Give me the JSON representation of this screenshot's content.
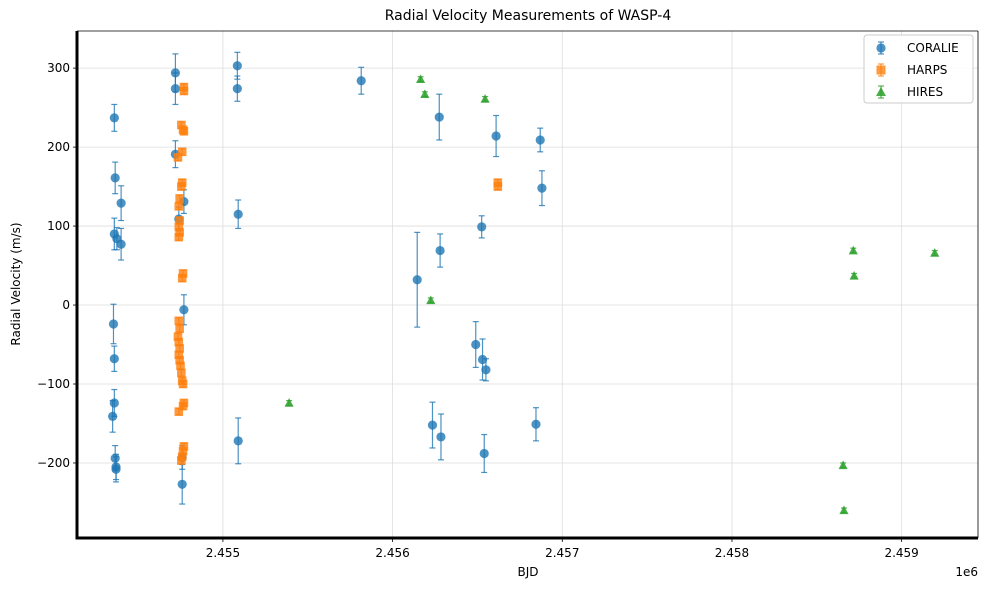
{
  "chart_data": {
    "type": "scatter",
    "title": "Radial Velocity Measurements of WASP-4",
    "xlabel": "BJD",
    "ylabel": "Radial Velocity (m/s)",
    "x_offset_label": "1e6",
    "xlim": [
      2454140,
      2459450
    ],
    "ylim": [
      -295,
      347
    ],
    "xticks": [
      2455000,
      2456000,
      2457000,
      2458000,
      2459000
    ],
    "xtick_labels": [
      "2.455",
      "2.456",
      "2.457",
      "2.458",
      "2.459"
    ],
    "yticks": [
      -200,
      -100,
      0,
      100,
      200,
      300
    ],
    "ytick_labels": [
      "−200",
      "−100",
      "0",
      "100",
      "200",
      "300"
    ],
    "grid": true,
    "legend_position": "top-right",
    "series": [
      {
        "name": "CORALIE",
        "marker": "circle",
        "color": "#1f77b4",
        "points": [
          {
            "x": 2454360,
            "y": 237,
            "err": 17
          },
          {
            "x": 2454365,
            "y": 161,
            "err": 20
          },
          {
            "x": 2454400,
            "y": 129,
            "err": 22
          },
          {
            "x": 2454360,
            "y": 90,
            "err": 20
          },
          {
            "x": 2454375,
            "y": 84,
            "err": 14
          },
          {
            "x": 2454400,
            "y": 77,
            "err": 20
          },
          {
            "x": 2454355,
            "y": -24,
            "err": 25
          },
          {
            "x": 2454360,
            "y": -68,
            "err": 16
          },
          {
            "x": 2454360,
            "y": -124,
            "err": 17
          },
          {
            "x": 2454350,
            "y": -141,
            "err": 20
          },
          {
            "x": 2454365,
            "y": -194,
            "err": 16
          },
          {
            "x": 2454370,
            "y": -205,
            "err": 16
          },
          {
            "x": 2454370,
            "y": -208,
            "err": 16
          },
          {
            "x": 2454720,
            "y": 294,
            "err": 24
          },
          {
            "x": 2454720,
            "y": 274,
            "err": 20
          },
          {
            "x": 2454720,
            "y": 191,
            "err": 17
          },
          {
            "x": 2454740,
            "y": 109,
            "err": 15
          },
          {
            "x": 2454770,
            "y": 131,
            "err": 15
          },
          {
            "x": 2454770,
            "y": -6,
            "err": 19
          },
          {
            "x": 2454760,
            "y": -193,
            "err": 15
          },
          {
            "x": 2454760,
            "y": -227,
            "err": 25
          },
          {
            "x": 2455085,
            "y": 303,
            "err": 17
          },
          {
            "x": 2455085,
            "y": 274,
            "err": 16
          },
          {
            "x": 2455090,
            "y": 115,
            "err": 18
          },
          {
            "x": 2455090,
            "y": -172,
            "err": 29
          },
          {
            "x": 2455815,
            "y": 284,
            "err": 17
          },
          {
            "x": 2456145,
            "y": 32,
            "err": 60
          },
          {
            "x": 2456235,
            "y": -152,
            "err": 29
          },
          {
            "x": 2456275,
            "y": 238,
            "err": 29
          },
          {
            "x": 2456280,
            "y": 69,
            "err": 21
          },
          {
            "x": 2456285,
            "y": -167,
            "err": 29
          },
          {
            "x": 2456490,
            "y": -50,
            "err": 29
          },
          {
            "x": 2456525,
            "y": 99,
            "err": 14
          },
          {
            "x": 2456530,
            "y": -69,
            "err": 26
          },
          {
            "x": 2456540,
            "y": -188,
            "err": 24
          },
          {
            "x": 2456550,
            "y": -82,
            "err": 14
          },
          {
            "x": 2456610,
            "y": 214,
            "err": 26
          },
          {
            "x": 2456845,
            "y": -151,
            "err": 21
          },
          {
            "x": 2456870,
            "y": 209,
            "err": 15
          },
          {
            "x": 2456880,
            "y": 148,
            "err": 22
          }
        ]
      },
      {
        "name": "HARPS",
        "marker": "square",
        "color": "#ff7f0e",
        "points": [
          {
            "x": 2454770,
            "y": 276,
            "err": 4
          },
          {
            "x": 2454770,
            "y": 271,
            "err": 4
          },
          {
            "x": 2454755,
            "y": 228,
            "err": 4
          },
          {
            "x": 2454765,
            "y": 222,
            "err": 4
          },
          {
            "x": 2454770,
            "y": 220,
            "err": 4
          },
          {
            "x": 2454760,
            "y": 194,
            "err": 4
          },
          {
            "x": 2454735,
            "y": 187,
            "err": 4
          },
          {
            "x": 2454760,
            "y": 155,
            "err": 4
          },
          {
            "x": 2454755,
            "y": 150,
            "err": 4
          },
          {
            "x": 2454745,
            "y": 135,
            "err": 4
          },
          {
            "x": 2454740,
            "y": 125,
            "err": 4
          },
          {
            "x": 2454745,
            "y": 107,
            "err": 4
          },
          {
            "x": 2454740,
            "y": 99,
            "err": 4
          },
          {
            "x": 2454745,
            "y": 92,
            "err": 4
          },
          {
            "x": 2454740,
            "y": 86,
            "err": 4
          },
          {
            "x": 2454765,
            "y": 40,
            "err": 4
          },
          {
            "x": 2454760,
            "y": 34,
            "err": 4
          },
          {
            "x": 2454740,
            "y": -20,
            "err": 4
          },
          {
            "x": 2454745,
            "y": -30,
            "err": 4
          },
          {
            "x": 2454735,
            "y": -40,
            "err": 4
          },
          {
            "x": 2454740,
            "y": -47,
            "err": 4
          },
          {
            "x": 2454745,
            "y": -55,
            "err": 4
          },
          {
            "x": 2454740,
            "y": -63,
            "err": 4
          },
          {
            "x": 2454745,
            "y": -70,
            "err": 4
          },
          {
            "x": 2454750,
            "y": -77,
            "err": 4
          },
          {
            "x": 2454755,
            "y": -86,
            "err": 4
          },
          {
            "x": 2454760,
            "y": -96,
            "err": 4
          },
          {
            "x": 2454765,
            "y": -100,
            "err": 4
          },
          {
            "x": 2454770,
            "y": -124,
            "err": 4
          },
          {
            "x": 2454765,
            "y": -128,
            "err": 4
          },
          {
            "x": 2454740,
            "y": -135,
            "err": 4
          },
          {
            "x": 2454770,
            "y": -179,
            "err": 4
          },
          {
            "x": 2454765,
            "y": -185,
            "err": 4
          },
          {
            "x": 2454760,
            "y": -192,
            "err": 4
          },
          {
            "x": 2454755,
            "y": -197,
            "err": 4
          },
          {
            "x": 2456620,
            "y": 155,
            "err": 4
          },
          {
            "x": 2456620,
            "y": 150,
            "err": 4
          }
        ]
      },
      {
        "name": "HIRES",
        "marker": "triangle",
        "color": "#2ca02c",
        "points": [
          {
            "x": 2455390,
            "y": -124,
            "err": 3
          },
          {
            "x": 2456165,
            "y": 286,
            "err": 3
          },
          {
            "x": 2456190,
            "y": 267,
            "err": 3
          },
          {
            "x": 2456225,
            "y": 6,
            "err": 3
          },
          {
            "x": 2456545,
            "y": 261,
            "err": 3
          },
          {
            "x": 2458655,
            "y": -203,
            "err": 3
          },
          {
            "x": 2458660,
            "y": -260,
            "err": 3
          },
          {
            "x": 2458715,
            "y": 69,
            "err": 3
          },
          {
            "x": 2458720,
            "y": 37,
            "err": 3
          },
          {
            "x": 2459195,
            "y": 66,
            "err": 3
          }
        ]
      }
    ]
  }
}
